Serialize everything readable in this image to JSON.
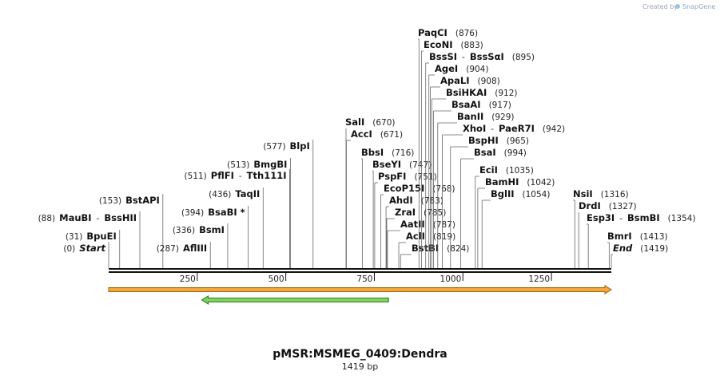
{
  "credit": {
    "prefix": "Created by",
    "brand": "SnapGene",
    "brand_color": "#5d87b8"
  },
  "title": "pMSR:MSMEG_0409:Dendra",
  "length_label": "1419 bp",
  "sequence_length": 1419,
  "axis_ticks": [
    250,
    500,
    750,
    1000,
    1250
  ],
  "features": [
    {
      "name": "orange-feature",
      "start": 0,
      "end": 1419,
      "color": "#f2a640",
      "border": "#a86a10",
      "direction": "forward"
    },
    {
      "name": "green-feature",
      "start": 263,
      "end": 790,
      "color": "#7fd35f",
      "border": "#2f7d1e",
      "direction": "reverse"
    }
  ],
  "sites": [
    {
      "label": "Start",
      "pos": 0,
      "pos_text": "(0)",
      "italic": true
    },
    {
      "label": "BpuEI",
      "pos": 31,
      "pos_text": "(31)"
    },
    {
      "label": "MauBI",
      "alt": "BssHII",
      "pos": 88,
      "pos_text": "(88)"
    },
    {
      "label": "BstAPI",
      "pos": 153,
      "pos_text": "(153)"
    },
    {
      "label": "AflIII",
      "pos": 287,
      "pos_text": "(287)"
    },
    {
      "label": "BsmI",
      "pos": 336,
      "pos_text": "(336)"
    },
    {
      "label": "BsaBI *",
      "pos": 394,
      "pos_text": "(394)"
    },
    {
      "label": "TaqII",
      "pos": 436,
      "pos_text": "(436)"
    },
    {
      "label": "PflFI",
      "alt": "Tth111I",
      "pos": 511,
      "pos_text": "(511)"
    },
    {
      "label": "BmgBI",
      "pos": 513,
      "pos_text": "(513)"
    },
    {
      "label": "BlpI",
      "pos": 577,
      "pos_text": "(577)"
    },
    {
      "label": "SalI",
      "pos": 670,
      "pos_text": "(670)"
    },
    {
      "label": "AccI",
      "pos": 671,
      "pos_text": "(671)"
    },
    {
      "label": "BbsI",
      "pos": 716,
      "pos_text": "(716)"
    },
    {
      "label": "BseYI",
      "pos": 747,
      "pos_text": "(747)"
    },
    {
      "label": "PspFI",
      "pos": 751,
      "pos_text": "(751)"
    },
    {
      "label": "EcoP15I",
      "pos": 768,
      "pos_text": "(768)"
    },
    {
      "label": "AhdI",
      "pos": 783,
      "pos_text": "(783)"
    },
    {
      "label": "ZraI",
      "pos": 785,
      "pos_text": "(785)"
    },
    {
      "label": "AatII",
      "pos": 787,
      "pos_text": "(787)"
    },
    {
      "label": "AclI",
      "pos": 819,
      "pos_text": "(819)"
    },
    {
      "label": "BstBI",
      "pos": 824,
      "pos_text": "(824)"
    },
    {
      "label": "PaqCI",
      "pos": 876,
      "pos_text": "(876)"
    },
    {
      "label": "EcoNI",
      "pos": 883,
      "pos_text": "(883)"
    },
    {
      "label": "BssSI",
      "alt": "BssSαI",
      "pos": 895,
      "pos_text": "(895)"
    },
    {
      "label": "AgeI",
      "pos": 904,
      "pos_text": "(904)"
    },
    {
      "label": "ApaLI",
      "pos": 908,
      "pos_text": "(908)"
    },
    {
      "label": "BsiHKAI",
      "pos": 912,
      "pos_text": "(912)"
    },
    {
      "label": "BsaAI",
      "pos": 917,
      "pos_text": "(917)"
    },
    {
      "label": "BanII",
      "pos": 929,
      "pos_text": "(929)"
    },
    {
      "label": "XhoI",
      "alt": "PaeR7I",
      "pos": 942,
      "pos_text": "(942)"
    },
    {
      "label": "BspHI",
      "pos": 965,
      "pos_text": "(965)"
    },
    {
      "label": "BsaI",
      "pos": 994,
      "pos_text": "(994)"
    },
    {
      "label": "EciI",
      "pos": 1035,
      "pos_text": "(1035)"
    },
    {
      "label": "BamHI",
      "pos": 1042,
      "pos_text": "(1042)"
    },
    {
      "label": "BglII",
      "pos": 1054,
      "pos_text": "(1054)"
    },
    {
      "label": "NsiI",
      "pos": 1316,
      "pos_text": "(1316)"
    },
    {
      "label": "DrdI",
      "pos": 1327,
      "pos_text": "(1327)"
    },
    {
      "label": "Esp3I",
      "alt": "BsmBI",
      "pos": 1354,
      "pos_text": "(1354)"
    },
    {
      "label": "BmrI",
      "pos": 1413,
      "pos_text": "(1413)"
    },
    {
      "label": "End",
      "pos": 1419,
      "pos_text": "(1419)",
      "italic": true
    }
  ]
}
